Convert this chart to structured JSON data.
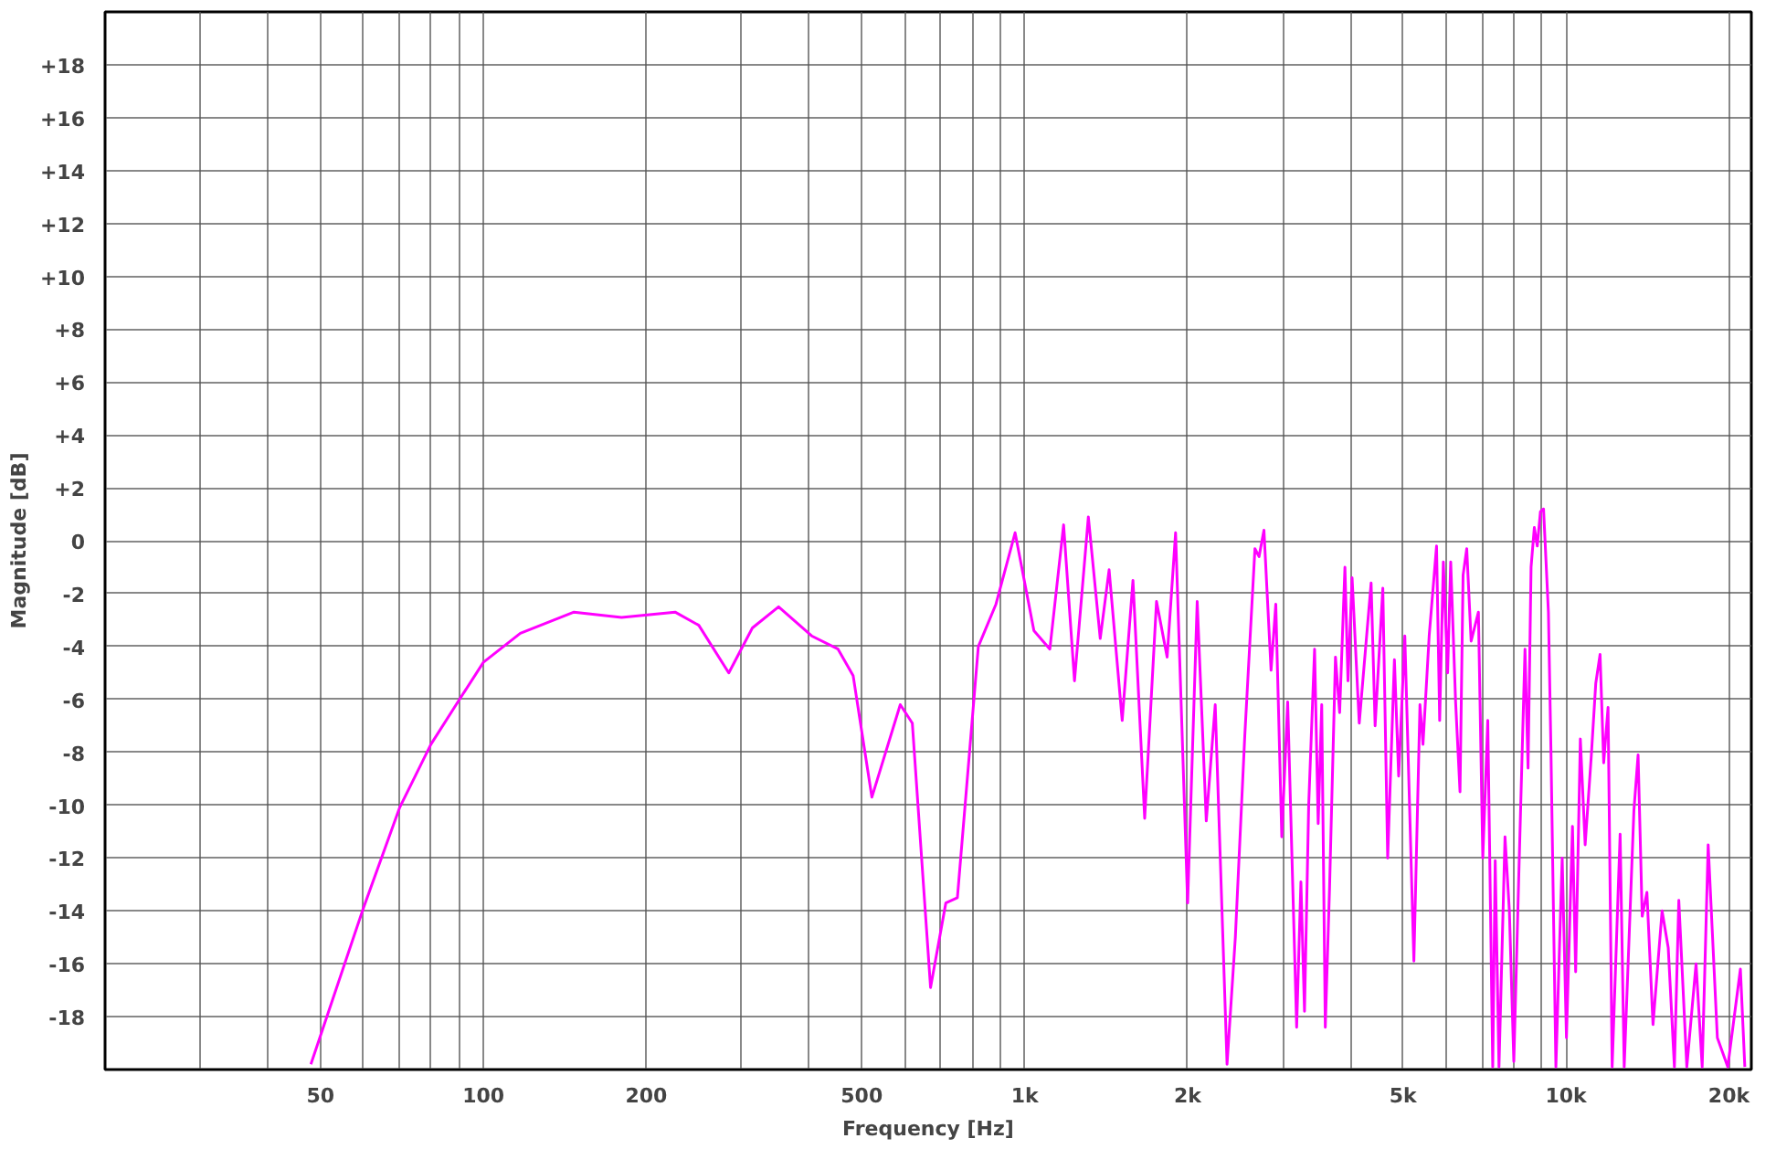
{
  "chart_data": {
    "type": "line",
    "xlabel": "Frequency [Hz]",
    "ylabel": "Magnitude [dB]",
    "log": "x",
    "grid": true,
    "marker": "none",
    "line_style": "solid",
    "xlim": [
      20,
      22000
    ],
    "ylim": [
      -20,
      20
    ],
    "xticks": [
      {
        "value": 30,
        "label": null
      },
      {
        "value": 40,
        "label": null
      },
      50,
      {
        "value": 60,
        "label": null
      },
      {
        "value": 70,
        "label": null
      },
      {
        "value": 80,
        "label": null
      },
      {
        "value": 90,
        "label": null
      },
      100,
      200,
      {
        "value": 300,
        "label": null
      },
      {
        "value": 400,
        "label": null
      },
      500,
      {
        "value": 600,
        "label": null
      },
      {
        "value": 700,
        "label": null
      },
      {
        "value": 800,
        "label": null
      },
      {
        "value": 900,
        "label": null
      },
      {
        "value": 1000,
        "label": "1k"
      },
      {
        "value": 2000,
        "label": "2k"
      },
      {
        "value": 3000,
        "label": null
      },
      {
        "value": 4000,
        "label": null
      },
      {
        "value": 5000,
        "label": "5k"
      },
      {
        "value": 6000,
        "label": null
      },
      {
        "value": 7000,
        "label": null
      },
      {
        "value": 8000,
        "label": null
      },
      {
        "value": 9000,
        "label": null
      },
      {
        "value": 10000,
        "label": "10k"
      },
      {
        "value": 20000,
        "label": "20k"
      }
    ],
    "yticks": [
      {
        "value": -18,
        "label": "-18"
      },
      -16,
      -14,
      -12,
      -10,
      -8,
      -6,
      -4,
      -2,
      0,
      {
        "value": 2,
        "label": "+2"
      },
      {
        "value": 4,
        "label": "+4"
      },
      {
        "value": 6,
        "label": "+6"
      },
      {
        "value": 8,
        "label": "+8"
      },
      {
        "value": 10,
        "label": "+10"
      },
      {
        "value": 12,
        "label": "+12"
      },
      {
        "value": 14,
        "label": "+14"
      },
      {
        "value": 16,
        "label": "+16"
      },
      {
        "value": 18,
        "label": "+18"
      }
    ],
    "series": [
      {
        "color": "#ff00ff",
        "x": [
          48,
          60,
          70,
          80,
          91,
          100,
          117,
          147,
          180,
          226,
          250,
          284,
          314,
          351,
          404,
          452,
          482,
          522,
          589,
          620,
          670,
          715,
          751,
          821,
          885,
          960,
          1040,
          1113,
          1180,
          1236,
          1311,
          1379,
          1432,
          1514,
          1585,
          1666,
          1752,
          1833,
          1900,
          2000,
          2083,
          2165,
          2249,
          2365,
          2450,
          2550,
          2663,
          2710,
          2767,
          2852,
          2910,
          2985,
          3061,
          3180,
          3238,
          3288,
          3347,
          3432,
          3485,
          3538,
          3592,
          3658,
          3751,
          3818,
          3905,
          3956,
          4026,
          4150,
          4365,
          4440,
          4588,
          4684,
          4820,
          4908,
          5038,
          5236,
          5373,
          5443,
          5588,
          5766,
          5843,
          5935,
          6044,
          6124,
          6253,
          6371,
          6455,
          6556,
          6680,
          6890,
          7020,
          7170,
          7323,
          7400,
          7520,
          7715,
          7860,
          8010,
          8180,
          8400,
          8510,
          8620,
          8740,
          8850,
          8970,
          9090,
          9280,
          9380,
          9580,
          9840,
          10020,
          10280,
          10420,
          10630,
          10850,
          11140,
          11350,
          11560,
          11740,
          11960,
          12170,
          12590,
          12810,
          13350,
          13590,
          13830,
          14110,
          14480,
          15050,
          15450,
          15860,
          16160,
          16720,
          17390,
          17850,
          18310,
          19040,
          19900,
          21000,
          21400
        ],
        "values": [
          -19.8,
          -13.9,
          -10.1,
          -7.7,
          -5.9,
          -4.6,
          -3.5,
          -2.7,
          -2.9,
          -2.7,
          -3.2,
          -5.0,
          -3.3,
          -2.5,
          -3.6,
          -4.1,
          -5.1,
          -9.7,
          -6.2,
          -6.9,
          -16.9,
          -13.7,
          -13.5,
          -4.0,
          -2.4,
          0.3,
          -3.4,
          -4.1,
          0.6,
          -5.3,
          0.9,
          -3.7,
          -1.1,
          -6.8,
          -1.5,
          -10.5,
          -2.3,
          -4.4,
          0.3,
          -13.7,
          -2.3,
          -10.6,
          -6.2,
          -19.8,
          -15.0,
          -7.4,
          -0.3,
          -0.6,
          0.4,
          -4.9,
          -2.4,
          -11.2,
          -6.1,
          -18.4,
          -12.9,
          -17.8,
          -10.0,
          -4.1,
          -10.7,
          -6.2,
          -18.4,
          -13.1,
          -4.4,
          -6.5,
          -1.0,
          -5.3,
          -1.4,
          -6.9,
          -1.6,
          -7.0,
          -1.8,
          -12.0,
          -4.5,
          -8.9,
          -3.6,
          -15.9,
          -6.2,
          -7.7,
          -3.6,
          -0.2,
          -6.8,
          -0.8,
          -5.0,
          -0.8,
          -6.1,
          -9.5,
          -1.3,
          -0.3,
          -3.8,
          -2.7,
          -12.0,
          -6.8,
          -19.9,
          -12.1,
          -19.9,
          -11.2,
          -14.0,
          -19.7,
          -12.7,
          -4.1,
          -8.6,
          -1.0,
          0.5,
          -0.2,
          1.1,
          1.2,
          -2.7,
          -7.9,
          -19.9,
          -12.0,
          -18.8,
          -10.8,
          -16.3,
          -7.5,
          -11.5,
          -8.1,
          -5.4,
          -4.3,
          -8.4,
          -6.3,
          -19.9,
          -11.1,
          -19.9,
          -10.2,
          -8.1,
          -14.2,
          -13.3,
          -18.3,
          -14.0,
          -15.4,
          -19.9,
          -13.6,
          -19.9,
          -16.0,
          -19.9,
          -11.5,
          -18.8,
          -19.9,
          -16.2,
          -19.9
        ]
      }
    ]
  }
}
